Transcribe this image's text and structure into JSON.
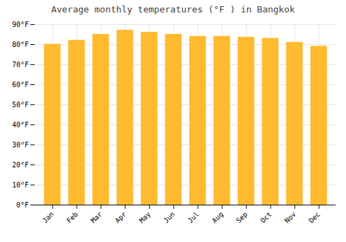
{
  "chart_data": {
    "type": "bar",
    "title": "Average monthly temperatures (°F ) in Bangkok",
    "categories": [
      "Jan",
      "Feb",
      "Mar",
      "Apr",
      "May",
      "Jun",
      "Jul",
      "Aug",
      "Sep",
      "Oct",
      "Nov",
      "Dec"
    ],
    "values": [
      80,
      82,
      85,
      87,
      86,
      85,
      84,
      84,
      83.5,
      83,
      81,
      79
    ],
    "color": "#FFBA30",
    "ylim": [
      0,
      90
    ],
    "yticks": [
      {
        "value": 0,
        "label": "0°F"
      },
      {
        "value": 10,
        "label": "10°F"
      },
      {
        "value": 20,
        "label": "20°F"
      },
      {
        "value": 30,
        "label": "30°F"
      },
      {
        "value": 40,
        "label": "40°F"
      },
      {
        "value": 50,
        "label": "50°F"
      },
      {
        "value": 60,
        "label": "60°F"
      },
      {
        "value": 70,
        "label": "70°F"
      },
      {
        "value": 80,
        "label": "80°F"
      },
      {
        "value": 90,
        "label": "90°F"
      }
    ],
    "grid": true
  }
}
